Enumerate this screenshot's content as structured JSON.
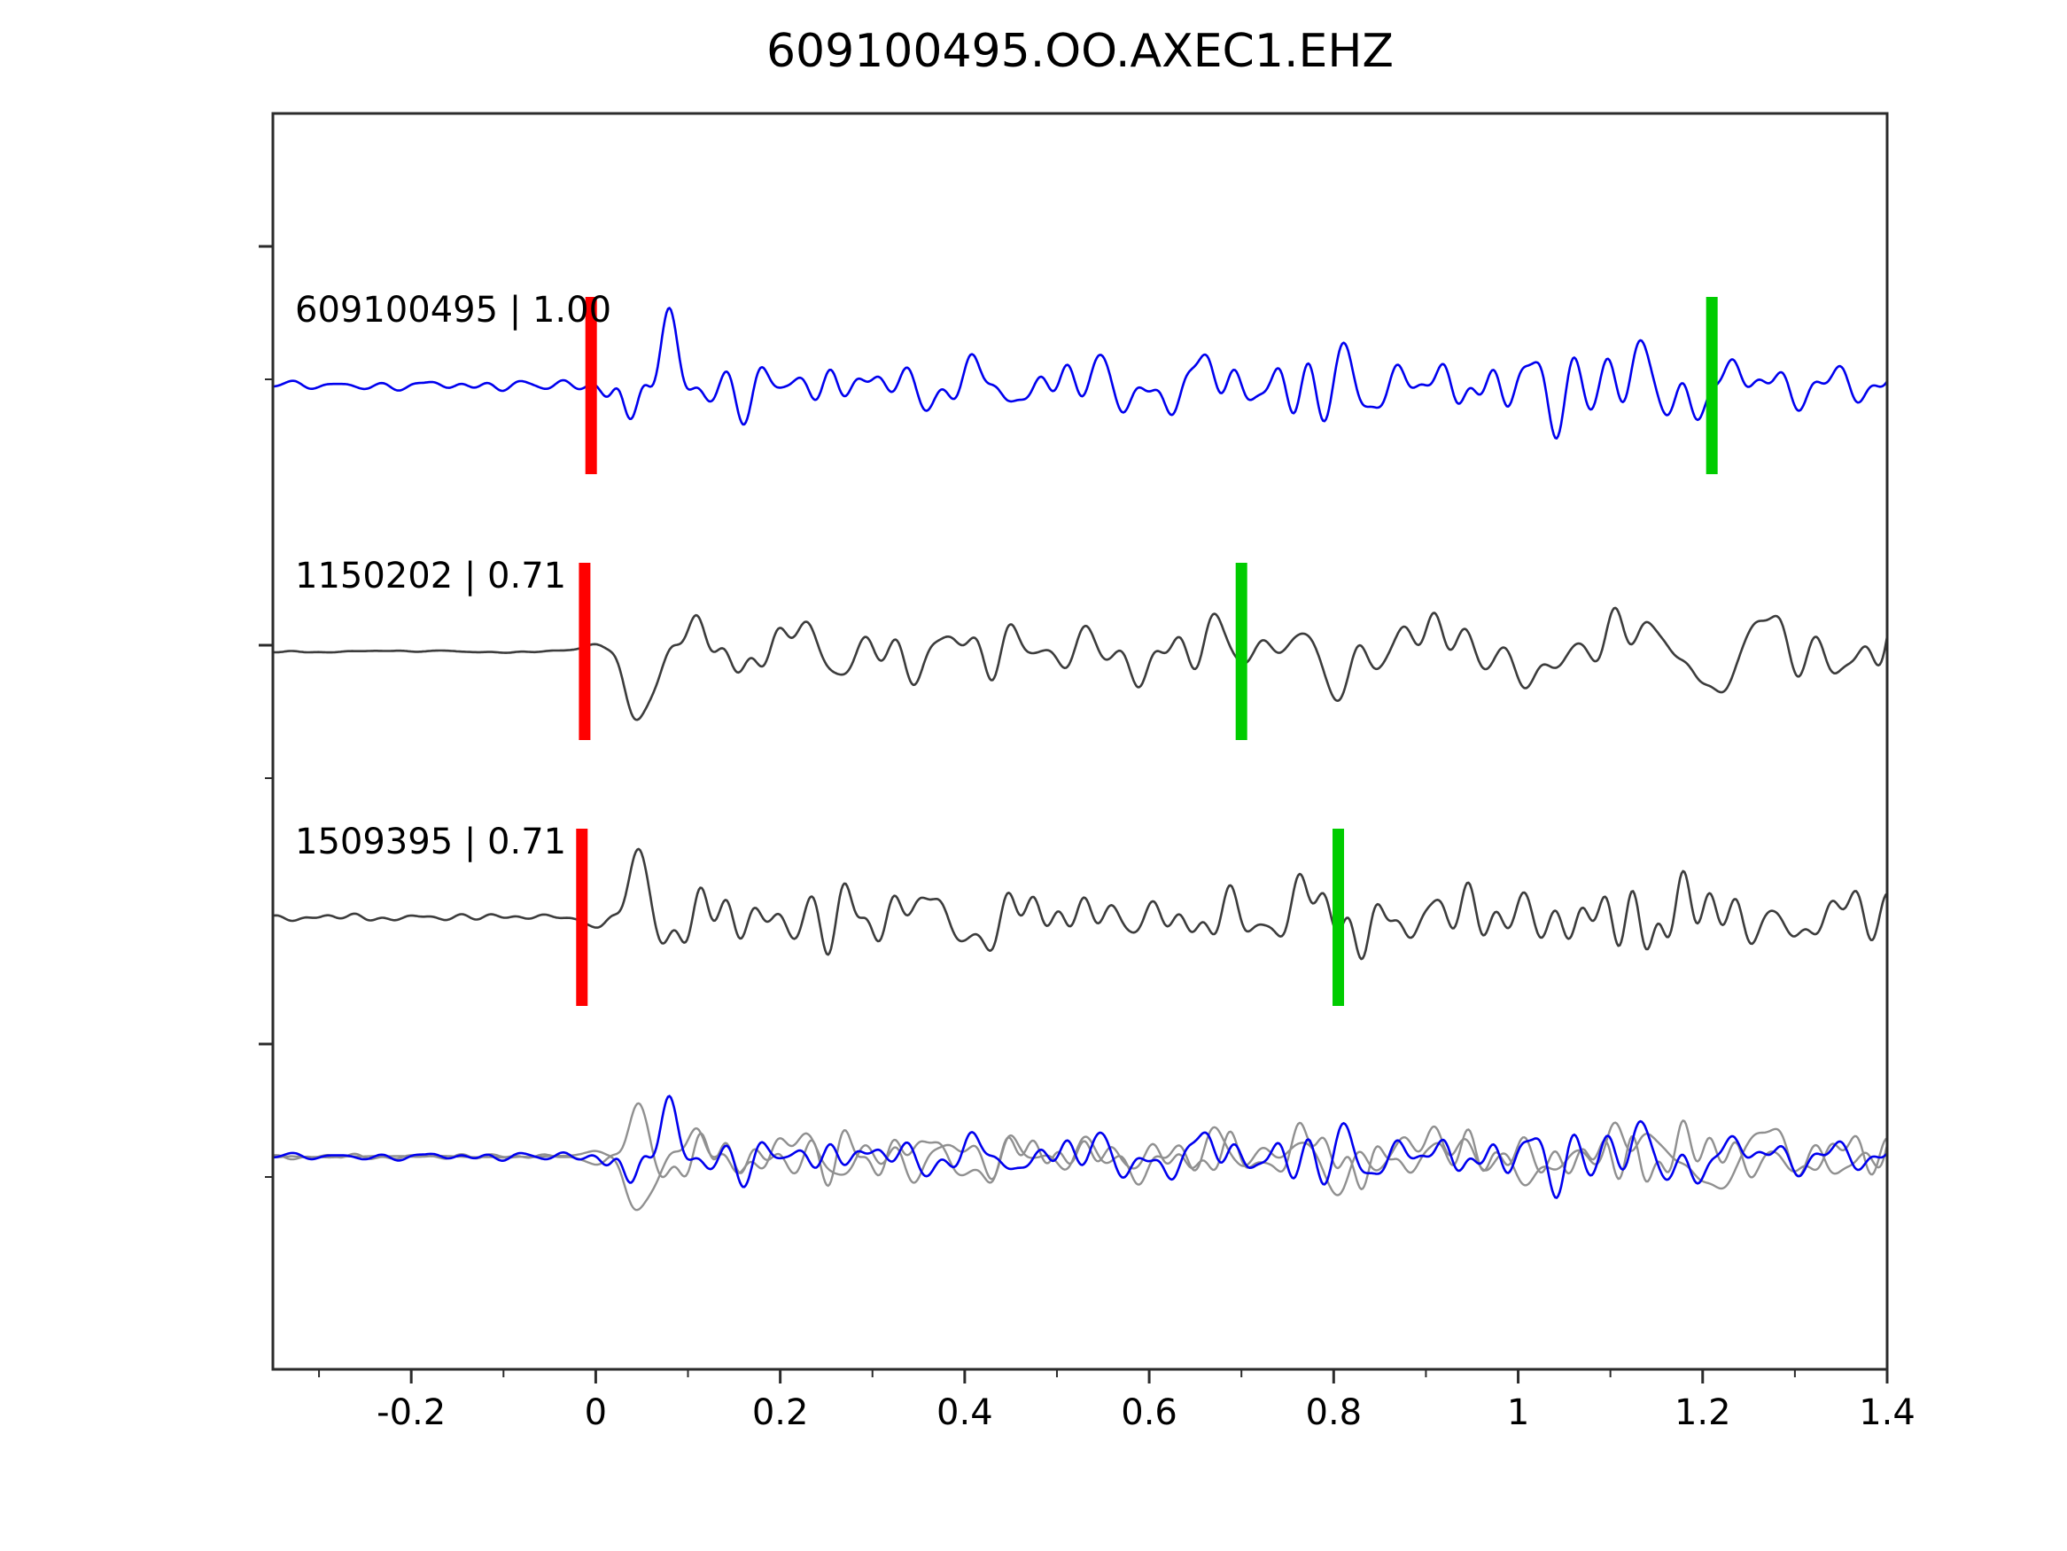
{
  "chart_data": {
    "type": "line",
    "title": "609100495.OO.AXEC1.EHZ",
    "xlabel": "",
    "ylabel": "",
    "x_range": [
      -0.35,
      1.4
    ],
    "x_ticks": [
      -0.2,
      0,
      0.2,
      0.4,
      0.6,
      0.8,
      1,
      1.2,
      1.4
    ],
    "x_tick_labels": [
      "-0.2",
      "0",
      "0.2",
      "0.4",
      "0.6",
      "0.8",
      "1",
      "1.2",
      "1.4"
    ],
    "grid": false,
    "legend": "none",
    "description": "Template waveform (top, blue) compared with two detected event waveforms (gray). Red bars mark the pick time near t=0; green bars mark a secondary marker per trace. Bottom row overlays all three traces.",
    "traces": [
      {
        "id": "609100495",
        "label": "609100495 | 1.00",
        "correlation": "1.00",
        "color": "#0000ee",
        "red_marker_x": -0.005,
        "green_marker_x": 1.21,
        "onset_x": 0.0,
        "pre_noise_level": 0.12,
        "seed": 11
      },
      {
        "id": "1150202",
        "label": "1150202 | 0.71",
        "correlation": "0.71",
        "color": "#3c3c3c",
        "red_marker_x": -0.012,
        "green_marker_x": 0.7,
        "onset_x": 0.0,
        "pre_noise_level": 0.03,
        "seed": 22
      },
      {
        "id": "1509395",
        "label": "1509395 | 0.71",
        "correlation": "0.71",
        "color": "#3c3c3c",
        "red_marker_x": -0.015,
        "green_marker_x": 0.805,
        "onset_x": 0.0,
        "pre_noise_level": 0.08,
        "seed": 33
      }
    ],
    "overlay": {
      "template_color": "#0000ee",
      "detection_color": "#909090",
      "amplitude_scale": 0.78
    },
    "marker_colors": {
      "pick": "#ff0000",
      "secondary": "#00cc00"
    },
    "axis_color": "#2b2b2b"
  }
}
